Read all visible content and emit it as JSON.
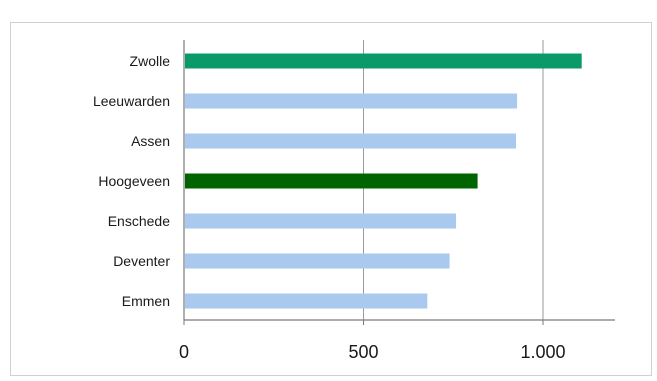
{
  "chart_data": {
    "type": "bar",
    "orientation": "horizontal",
    "title": "",
    "xlabel": "",
    "ylabel": "",
    "categories": [
      "Zwolle",
      "Leeuwarden",
      "Assen",
      "Hoogeveen",
      "Enschede",
      "Deventer",
      "Emmen"
    ],
    "values": [
      1105,
      925,
      922,
      815,
      755,
      737,
      675
    ],
    "bar_colors": [
      "#0a9a6a",
      "#a9c9ee",
      "#a9c9ee",
      "#006400",
      "#a9c9ee",
      "#a9c9ee",
      "#a9c9ee"
    ],
    "xlim": [
      0,
      1200
    ],
    "x_ticks": [
      0,
      500,
      1000
    ],
    "x_tick_labels": [
      "0",
      "500",
      "1.000"
    ],
    "grid": "vertical",
    "legend": "none"
  }
}
